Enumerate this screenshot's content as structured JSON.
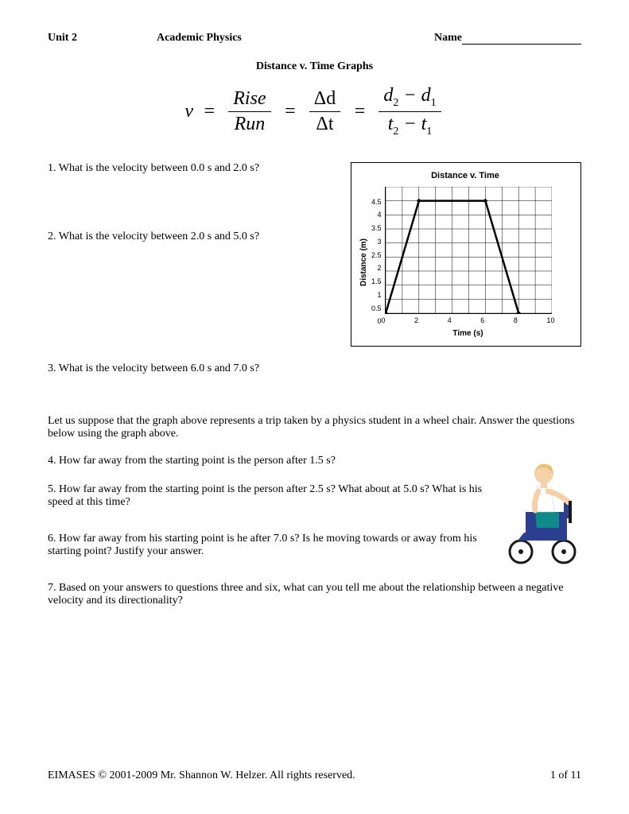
{
  "header": {
    "unit": "Unit 2",
    "course": "Academic Physics",
    "name_label": "Name"
  },
  "subtitle": "Distance v. Time Graphs",
  "formula": {
    "lhs": "v",
    "f1_top": "Rise",
    "f1_bot": "Run",
    "f2_top": "Δd",
    "f2_bot": "Δt",
    "f3_top_a": "d",
    "f3_top_s1": "2",
    "f3_top_m": " − ",
    "f3_top_b": "d",
    "f3_top_s2": "1",
    "f3_bot_a": "t",
    "f3_bot_s1": "2",
    "f3_bot_m": " − ",
    "f3_bot_b": "t",
    "f3_bot_s2": "1"
  },
  "questions": {
    "q1": "1.  What is the velocity between 0.0 s and 2.0 s?",
    "q2": "2.  What is the velocity between 2.0 s and 5.0 s?",
    "q3": "3.  What is the velocity between 6.0 s and 7.0 s?",
    "intro": "Let us suppose that the graph above represents a trip taken by a physics student in a wheel chair.  Answer the questions below using the graph above.",
    "q4": "4.  How far away from the starting point is the person after 1.5 s?",
    "q5": "5.  How far away from the starting point is the person after 2.5 s?  What about at 5.0 s?  What is his speed at this time?",
    "q6": "6.  How far away from his starting point is he after 7.0 s?  Is he moving towards or away from his starting point?  Justify your answer.",
    "q7": "7.  Based on your answers to questions three and six, what can you tell me about the relationship between a negative velocity and its directionality?"
  },
  "chart": {
    "type": "line",
    "title": "Distance v. Time",
    "xlabel": "Time (s)",
    "ylabel": "Distance (m)",
    "xlim": [
      0,
      10
    ],
    "ylim": [
      0,
      4.5
    ],
    "xtick_step": 2,
    "ytick_step": 0.5,
    "xticks": [
      "0",
      "2",
      "4",
      "6",
      "8",
      "10"
    ],
    "yticks": [
      "4.5",
      "4",
      "3.5",
      "3",
      "2.5",
      "2",
      "1.5",
      "1",
      "0.5",
      "0"
    ],
    "points": [
      {
        "x": 0,
        "y": 0
      },
      {
        "x": 2,
        "y": 4
      },
      {
        "x": 6,
        "y": 4
      },
      {
        "x": 8,
        "y": 0
      }
    ],
    "line_color": "#000000",
    "line_width": 2.5,
    "marker": "diamond",
    "marker_size": 6,
    "marker_color": "#000000",
    "background_color": "#ffffff",
    "grid_color": "#000000",
    "grid_width": 0.5,
    "title_fontsize": 11,
    "label_fontsize": 10,
    "tick_fontsize": 9,
    "font_family": "Arial"
  },
  "wheelchair": {
    "skin_color": "#f5d0a9",
    "hair_color": "#e8c070",
    "shirt_color": "#ffffff",
    "pants_color": "#0e8a8a",
    "chair_color": "#2c3e8f",
    "wheel_color": "#1a1a1a"
  },
  "footer": {
    "copyright": "EIMASES © 2001-2009 Mr. Shannon W. Helzer.  All rights reserved.",
    "page": "1 of 11"
  }
}
